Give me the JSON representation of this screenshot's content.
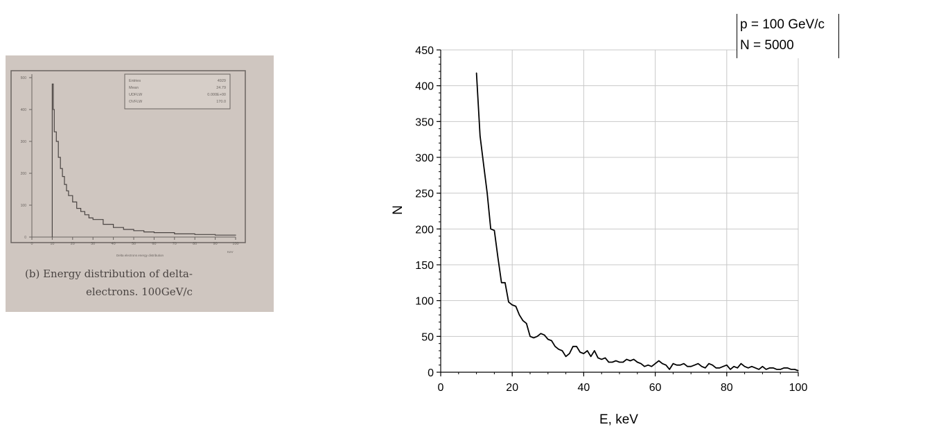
{
  "photo": {
    "caption_line1": "(b) Energy distribution of delta-",
    "caption_line2": "electrons. 100GeV/c",
    "xlabel": "Delta electrons energy distribution",
    "xunit": "KeV",
    "stats": [
      {
        "label": "Entries",
        "value": "4929"
      },
      {
        "label": "Mean",
        "value": "24.79"
      },
      {
        "label": "UDFLW",
        "value": "0.000E+00"
      },
      {
        "label": "OVFLW",
        "value": "170.0"
      }
    ],
    "chart_data": {
      "type": "line",
      "x": [
        10,
        10.5,
        11,
        12,
        13,
        14,
        15,
        16,
        17,
        18,
        20,
        22,
        24,
        26,
        28,
        30,
        35,
        40,
        45,
        50,
        55,
        60,
        70,
        80,
        90,
        100
      ],
      "y": [
        480,
        400,
        330,
        300,
        250,
        215,
        190,
        165,
        145,
        130,
        110,
        90,
        80,
        70,
        60,
        55,
        40,
        30,
        24,
        20,
        16,
        14,
        10,
        8,
        6,
        5
      ],
      "xlim": [
        0,
        100
      ],
      "ylim": [
        0,
        500
      ],
      "xticks": [
        0,
        10,
        20,
        30,
        40,
        50,
        60,
        70,
        80,
        90,
        100
      ],
      "yticks": [
        0,
        100,
        200,
        300,
        400,
        500
      ]
    }
  },
  "chart": {
    "legend_line1": "p = 100 GeV/c",
    "legend_line2": "N = 5000",
    "chart_data": {
      "type": "line",
      "xlabel": "E, keV",
      "ylabel": "N",
      "xlim": [
        0,
        100
      ],
      "ylim": [
        0,
        450
      ],
      "xticks": [
        0,
        20,
        40,
        60,
        80,
        100
      ],
      "yticks": [
        0,
        50,
        100,
        150,
        200,
        250,
        300,
        350,
        400,
        450
      ],
      "grid": true,
      "x": [
        10,
        11,
        12,
        13,
        14,
        15,
        16,
        17,
        18,
        19,
        20,
        21,
        22,
        23,
        24,
        25,
        26,
        27,
        28,
        29,
        30,
        31,
        32,
        33,
        34,
        35,
        36,
        37,
        38,
        39,
        40,
        41,
        42,
        43,
        44,
        45,
        46,
        47,
        48,
        49,
        50,
        51,
        52,
        53,
        54,
        55,
        56,
        57,
        58,
        59,
        60,
        61,
        62,
        63,
        64,
        65,
        66,
        67,
        68,
        69,
        70,
        71,
        72,
        73,
        74,
        75,
        76,
        77,
        78,
        79,
        80,
        81,
        82,
        83,
        84,
        85,
        86,
        87,
        88,
        89,
        90,
        91,
        92,
        93,
        94,
        95,
        96,
        97,
        98,
        99,
        100
      ],
      "y": [
        418,
        330,
        290,
        250,
        200,
        198,
        160,
        125,
        125,
        98,
        94,
        92,
        80,
        72,
        68,
        50,
        48,
        50,
        54,
        52,
        46,
        44,
        36,
        32,
        30,
        22,
        26,
        36,
        36,
        28,
        26,
        30,
        22,
        30,
        20,
        18,
        20,
        14,
        14,
        16,
        14,
        14,
        18,
        16,
        18,
        14,
        12,
        8,
        10,
        8,
        12,
        16,
        12,
        10,
        4,
        12,
        10,
        10,
        12,
        8,
        8,
        10,
        12,
        8,
        6,
        12,
        10,
        6,
        6,
        8,
        10,
        4,
        8,
        6,
        12,
        8,
        6,
        8,
        6,
        4,
        8,
        4,
        6,
        6,
        4,
        4,
        6,
        6,
        4,
        4,
        2
      ]
    }
  }
}
